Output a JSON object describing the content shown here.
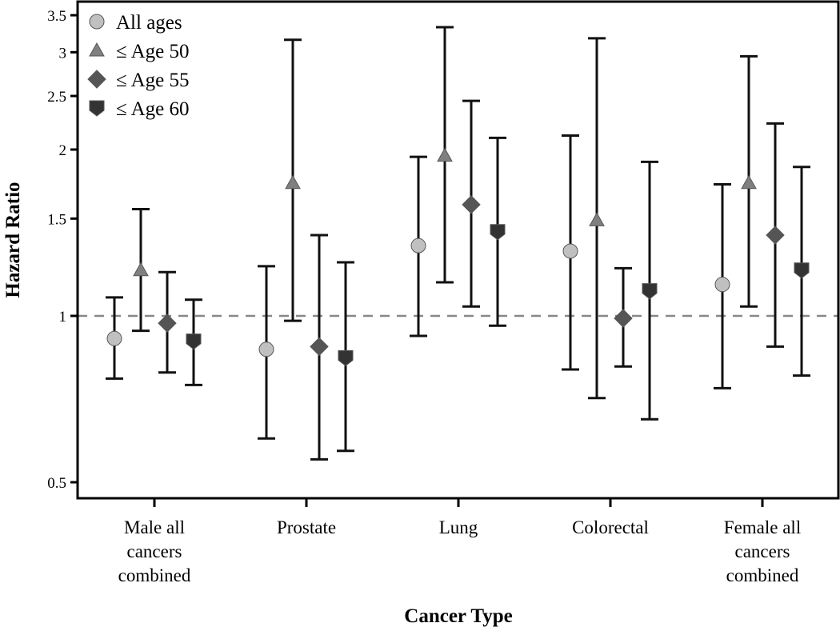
{
  "chart_data": {
    "type": "scatter",
    "subtype": "point-estimate-with-error-bars",
    "title": "",
    "xlabel": "Cancer Type",
    "ylabel": "Hazard Ratio",
    "yscale": "log",
    "ylim": [
      0.47,
      3.6
    ],
    "yticks": [
      0.5,
      1,
      1.5,
      2,
      2.5,
      3,
      3.5
    ],
    "ytick_labels": [
      "0.5",
      "1",
      "1.5",
      "2",
      "2.5",
      "3",
      "3.5"
    ],
    "reference_line": {
      "y": 1,
      "style": "dashed",
      "color": "#888888"
    },
    "grid": false,
    "legend_position": "top-left",
    "categories": [
      [
        "Male all",
        "cancers",
        "combined"
      ],
      [
        "Prostate"
      ],
      [
        "Lung"
      ],
      [
        "Colorectal"
      ],
      [
        "Female all",
        "cancers",
        "combined"
      ]
    ],
    "series": [
      {
        "name": "All ages",
        "marker": "circle",
        "color": "#c0c0c0",
        "values": [
          0.91,
          0.87,
          1.34,
          1.31,
          1.14
        ],
        "lower": [
          0.77,
          0.6,
          0.92,
          0.8,
          0.74
        ],
        "upper": [
          1.08,
          1.23,
          1.94,
          2.12,
          1.73
        ]
      },
      {
        "name": "≤ Age 50",
        "marker": "triangle",
        "color": "#808080",
        "values": [
          1.21,
          1.74,
          1.95,
          1.49,
          1.74
        ],
        "lower": [
          0.94,
          0.98,
          1.15,
          0.71,
          1.04
        ],
        "upper": [
          1.56,
          3.16,
          3.33,
          3.18,
          2.95
        ]
      },
      {
        "name": "≤ Age 55",
        "marker": "diamond",
        "color": "#555555",
        "values": [
          0.97,
          0.88,
          1.59,
          0.99,
          1.4
        ],
        "lower": [
          0.79,
          0.55,
          1.04,
          0.81,
          0.88
        ],
        "upper": [
          1.2,
          1.4,
          2.45,
          1.22,
          2.23
        ]
      },
      {
        "name": "≤ Age 60",
        "marker": "pentagon-down",
        "color": "#333333",
        "values": [
          0.9,
          0.84,
          1.42,
          1.11,
          1.21
        ],
        "lower": [
          0.75,
          0.57,
          0.96,
          0.65,
          0.78
        ],
        "upper": [
          1.07,
          1.25,
          2.1,
          1.9,
          1.86
        ]
      }
    ]
  }
}
